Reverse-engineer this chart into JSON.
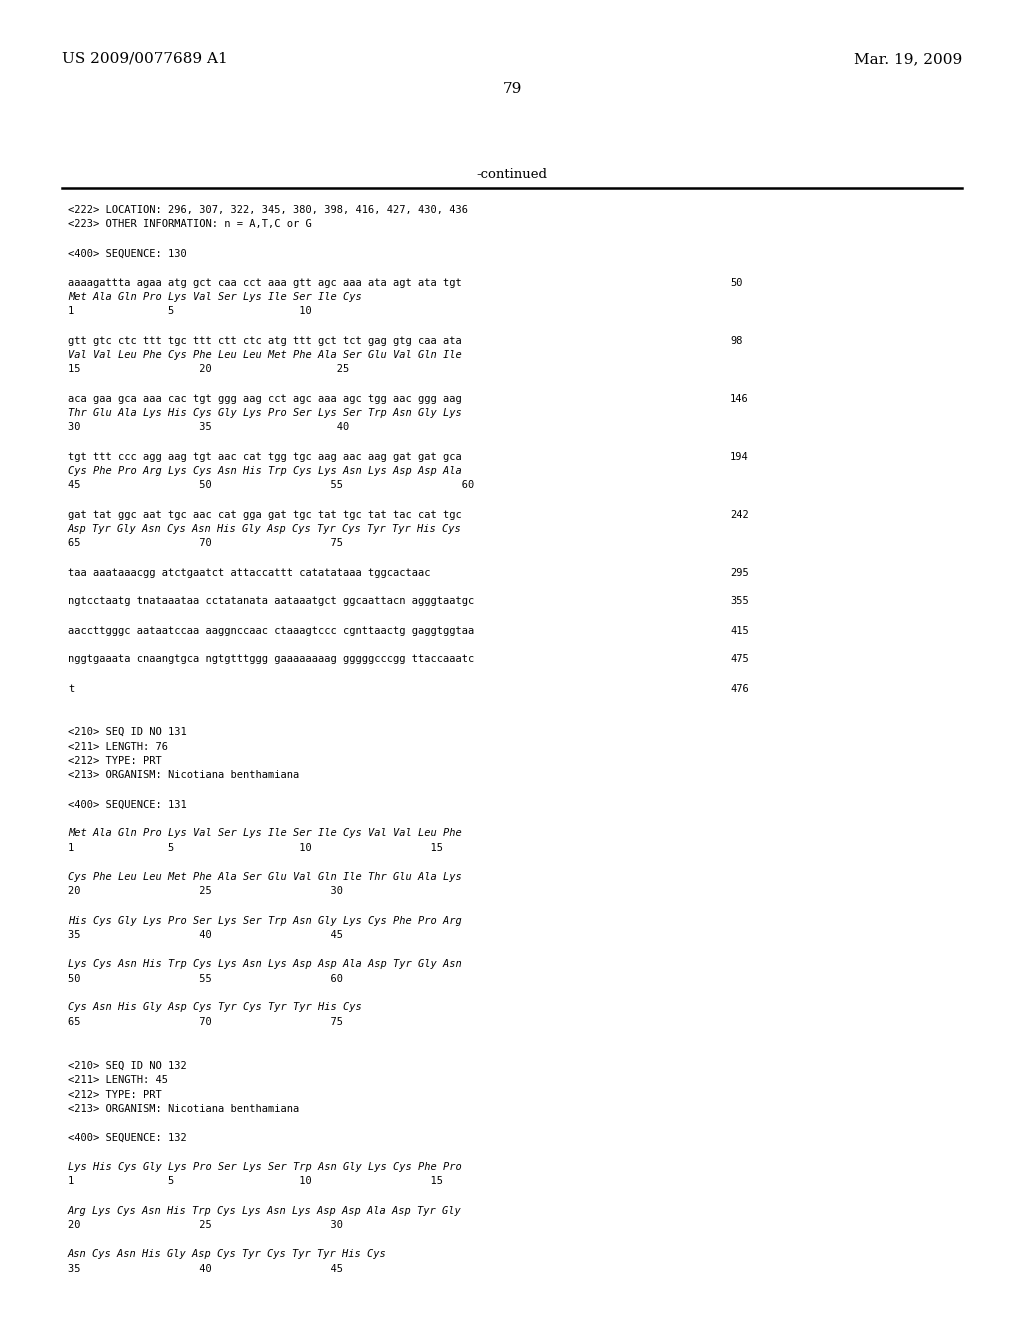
{
  "background_color": "#ffffff",
  "top_left_text": "US 2009/0077689 A1",
  "top_right_text": "Mar. 19, 2009",
  "page_number": "79",
  "continued_text": "-continued",
  "content_lines": [
    {
      "text": "<222> LOCATION: 296, 307, 322, 345, 380, 398, 416, 427, 430, 436",
      "style": "mono",
      "num": ""
    },
    {
      "text": "<223> OTHER INFORMATION: n = A,T,C or G",
      "style": "mono",
      "num": ""
    },
    {
      "text": "",
      "style": "mono",
      "num": ""
    },
    {
      "text": "<400> SEQUENCE: 130",
      "style": "mono",
      "num": ""
    },
    {
      "text": "",
      "style": "mono",
      "num": ""
    },
    {
      "text": "aaaagattta agaa atg gct caa cct aaa gtt agc aaa ata agt ata tgt",
      "style": "mono",
      "num": "50"
    },
    {
      "text": "Met Ala Gln Pro Lys Val Ser Lys Ile Ser Ile Cys",
      "style": "italic",
      "num": ""
    },
    {
      "text": "1               5                    10",
      "style": "mono",
      "num": ""
    },
    {
      "text": "",
      "style": "mono",
      "num": ""
    },
    {
      "text": "gtt gtc ctc ttt tgc ttt ctt ctc atg ttt gct tct gag gtg caa ata",
      "style": "mono",
      "num": "98"
    },
    {
      "text": "Val Val Leu Phe Cys Phe Leu Leu Met Phe Ala Ser Glu Val Gln Ile",
      "style": "italic",
      "num": ""
    },
    {
      "text": "15                   20                    25",
      "style": "mono",
      "num": ""
    },
    {
      "text": "",
      "style": "mono",
      "num": ""
    },
    {
      "text": "aca gaa gca aaa cac tgt ggg aag cct agc aaa agc tgg aac ggg aag",
      "style": "mono",
      "num": "146"
    },
    {
      "text": "Thr Glu Ala Lys His Cys Gly Lys Pro Ser Lys Ser Trp Asn Gly Lys",
      "style": "italic",
      "num": ""
    },
    {
      "text": "30                   35                    40",
      "style": "mono",
      "num": ""
    },
    {
      "text": "",
      "style": "mono",
      "num": ""
    },
    {
      "text": "tgt ttt ccc agg aag tgt aac cat tgg tgc aag aac aag gat gat gca",
      "style": "mono",
      "num": "194"
    },
    {
      "text": "Cys Phe Pro Arg Lys Cys Asn His Trp Cys Lys Asn Lys Asp Asp Ala",
      "style": "italic",
      "num": ""
    },
    {
      "text": "45                   50                   55                   60",
      "style": "mono",
      "num": ""
    },
    {
      "text": "",
      "style": "mono",
      "num": ""
    },
    {
      "text": "gat tat ggc aat tgc aac cat gga gat tgc tat tgc tat tac cat tgc",
      "style": "mono",
      "num": "242"
    },
    {
      "text": "Asp Tyr Gly Asn Cys Asn His Gly Asp Cys Tyr Cys Tyr Tyr His Cys",
      "style": "italic",
      "num": ""
    },
    {
      "text": "65                   70                   75",
      "style": "mono",
      "num": ""
    },
    {
      "text": "",
      "style": "mono",
      "num": ""
    },
    {
      "text": "taa aaataaacgg atctgaatct attaccattt catatataaa tggcactaac",
      "style": "mono",
      "num": "295"
    },
    {
      "text": "",
      "style": "mono",
      "num": ""
    },
    {
      "text": "ngtcctaatg tnataaataa cctatanata aataaatgct ggcaattacn agggtaatgc",
      "style": "mono",
      "num": "355"
    },
    {
      "text": "",
      "style": "mono",
      "num": ""
    },
    {
      "text": "aaccttgggc aataatccaa aaggnccaac ctaaagtccc cgnttaactg gaggtggtaa",
      "style": "mono",
      "num": "415"
    },
    {
      "text": "",
      "style": "mono",
      "num": ""
    },
    {
      "text": "nggtgaaata cnaangtgca ngtgtttggg gaaaaaaaag gggggcccgg ttaccaaatc",
      "style": "mono",
      "num": "475"
    },
    {
      "text": "",
      "style": "mono",
      "num": ""
    },
    {
      "text": "t",
      "style": "mono",
      "num": "476"
    },
    {
      "text": "",
      "style": "mono",
      "num": ""
    },
    {
      "text": "",
      "style": "mono",
      "num": ""
    },
    {
      "text": "<210> SEQ ID NO 131",
      "style": "mono",
      "num": ""
    },
    {
      "text": "<211> LENGTH: 76",
      "style": "mono",
      "num": ""
    },
    {
      "text": "<212> TYPE: PRT",
      "style": "mono",
      "num": ""
    },
    {
      "text": "<213> ORGANISM: Nicotiana benthamiana",
      "style": "mono",
      "num": ""
    },
    {
      "text": "",
      "style": "mono",
      "num": ""
    },
    {
      "text": "<400> SEQUENCE: 131",
      "style": "mono",
      "num": ""
    },
    {
      "text": "",
      "style": "mono",
      "num": ""
    },
    {
      "text": "Met Ala Gln Pro Lys Val Ser Lys Ile Ser Ile Cys Val Val Leu Phe",
      "style": "italic",
      "num": ""
    },
    {
      "text": "1               5                    10                   15",
      "style": "mono",
      "num": ""
    },
    {
      "text": "",
      "style": "mono",
      "num": ""
    },
    {
      "text": "Cys Phe Leu Leu Met Phe Ala Ser Glu Val Gln Ile Thr Glu Ala Lys",
      "style": "italic",
      "num": ""
    },
    {
      "text": "20                   25                   30",
      "style": "mono",
      "num": ""
    },
    {
      "text": "",
      "style": "mono",
      "num": ""
    },
    {
      "text": "His Cys Gly Lys Pro Ser Lys Ser Trp Asn Gly Lys Cys Phe Pro Arg",
      "style": "italic",
      "num": ""
    },
    {
      "text": "35                   40                   45",
      "style": "mono",
      "num": ""
    },
    {
      "text": "",
      "style": "mono",
      "num": ""
    },
    {
      "text": "Lys Cys Asn His Trp Cys Lys Asn Lys Asp Asp Ala Asp Tyr Gly Asn",
      "style": "italic",
      "num": ""
    },
    {
      "text": "50                   55                   60",
      "style": "mono",
      "num": ""
    },
    {
      "text": "",
      "style": "mono",
      "num": ""
    },
    {
      "text": "Cys Asn His Gly Asp Cys Tyr Cys Tyr Tyr His Cys",
      "style": "italic",
      "num": ""
    },
    {
      "text": "65                   70                   75",
      "style": "mono",
      "num": ""
    },
    {
      "text": "",
      "style": "mono",
      "num": ""
    },
    {
      "text": "",
      "style": "mono",
      "num": ""
    },
    {
      "text": "<210> SEQ ID NO 132",
      "style": "mono",
      "num": ""
    },
    {
      "text": "<211> LENGTH: 45",
      "style": "mono",
      "num": ""
    },
    {
      "text": "<212> TYPE: PRT",
      "style": "mono",
      "num": ""
    },
    {
      "text": "<213> ORGANISM: Nicotiana benthamiana",
      "style": "mono",
      "num": ""
    },
    {
      "text": "",
      "style": "mono",
      "num": ""
    },
    {
      "text": "<400> SEQUENCE: 132",
      "style": "mono",
      "num": ""
    },
    {
      "text": "",
      "style": "mono",
      "num": ""
    },
    {
      "text": "Lys His Cys Gly Lys Pro Ser Lys Ser Trp Asn Gly Lys Cys Phe Pro",
      "style": "italic",
      "num": ""
    },
    {
      "text": "1               5                    10                   15",
      "style": "mono",
      "num": ""
    },
    {
      "text": "",
      "style": "mono",
      "num": ""
    },
    {
      "text": "Arg Lys Cys Asn His Trp Cys Lys Asn Lys Asp Asp Ala Asp Tyr Gly",
      "style": "italic",
      "num": ""
    },
    {
      "text": "20                   25                   30",
      "style": "mono",
      "num": ""
    },
    {
      "text": "",
      "style": "mono",
      "num": ""
    },
    {
      "text": "Asn Cys Asn His Gly Asp Cys Tyr Cys Tyr Tyr His Cys",
      "style": "italic",
      "num": ""
    },
    {
      "text": "35                   40                   45",
      "style": "mono",
      "num": ""
    }
  ]
}
